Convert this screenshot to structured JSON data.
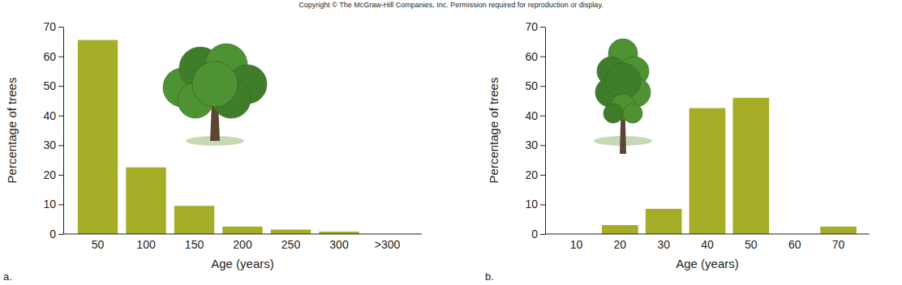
{
  "copyright": "Copyright © The McGraw-Hill Companies, Inc. Permission required for reproduction or display.",
  "chart_data": [
    {
      "type": "bar",
      "annotations": [
        "a."
      ],
      "x_label": "Age (years)",
      "y_label": "Percentage of trees",
      "categories": [
        "50",
        "100",
        "150",
        "200",
        "250",
        "300",
        ">300"
      ],
      "values": [
        65.5,
        22.5,
        9.5,
        2.5,
        1.5,
        0.8,
        0
      ],
      "color": "#a4ad25",
      "ylim": [
        0,
        70
      ],
      "yticks": [
        0,
        10,
        20,
        30,
        40,
        50,
        60,
        70
      ]
    },
    {
      "type": "bar",
      "annotations": [
        "b."
      ],
      "x_label": "Age (years)",
      "y_label": "Percentage of trees",
      "categories": [
        "10",
        "20",
        "30",
        "40",
        "50",
        "60",
        "70"
      ],
      "values": [
        0,
        3,
        8.5,
        42.5,
        46,
        0,
        2.5
      ],
      "color": "#a4ad25",
      "ylim": [
        0,
        70
      ],
      "yticks": [
        0,
        10,
        20,
        30,
        40,
        50,
        60,
        70
      ]
    }
  ]
}
